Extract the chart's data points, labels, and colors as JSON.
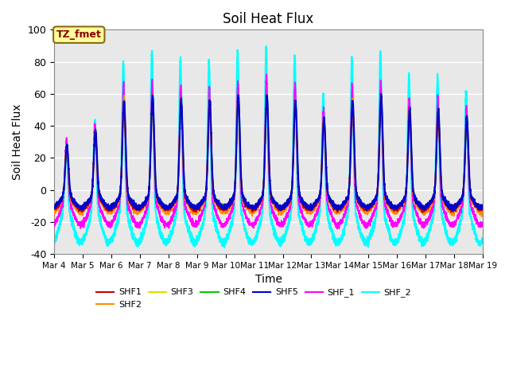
{
  "title": "Soil Heat Flux",
  "ylabel": "Soil Heat Flux",
  "xlabel": "Time",
  "annotation_text": "TZ_fmet",
  "annotation_color": "#8B0000",
  "annotation_bg": "#FFFF99",
  "annotation_border": "#8B6914",
  "ylim": [
    -40,
    100
  ],
  "xlim": [
    0,
    15
  ],
  "background_color": "#E8E8E8",
  "series": [
    {
      "label": "SHF1",
      "color": "#CC0000",
      "lw": 1.2,
      "zorder": 5
    },
    {
      "label": "SHF2",
      "color": "#FF8C00",
      "lw": 1.2,
      "zorder": 4
    },
    {
      "label": "SHF3",
      "color": "#DDDD00",
      "lw": 1.2,
      "zorder": 4
    },
    {
      "label": "SHF4",
      "color": "#00CC00",
      "lw": 1.2,
      "zorder": 4
    },
    {
      "label": "SHF5",
      "color": "#0000CC",
      "lw": 1.5,
      "zorder": 5
    },
    {
      "label": "SHF_1",
      "color": "#FF00FF",
      "lw": 1.2,
      "zorder": 3
    },
    {
      "label": "SHF_2",
      "color": "#00FFFF",
      "lw": 1.5,
      "zorder": 2
    }
  ],
  "xtick_labels": [
    "Mar 4",
    "Mar 5",
    "Mar 6",
    "Mar 7",
    "Mar 8",
    "Mar 9",
    "Mar 10",
    "Mar 11",
    "Mar 12",
    "Mar 13",
    "Mar 14",
    "Mar 15",
    "Mar 16",
    "Mar 17",
    "Mar 18",
    "Mar 19"
  ],
  "ytick_labels": [
    -40,
    -20,
    0,
    20,
    40,
    60,
    80,
    100
  ],
  "grid_color": "#FFFFFF",
  "plot_bg": "#E8E8E8",
  "figsize": [
    6.4,
    4.8
  ],
  "dpi": 100
}
